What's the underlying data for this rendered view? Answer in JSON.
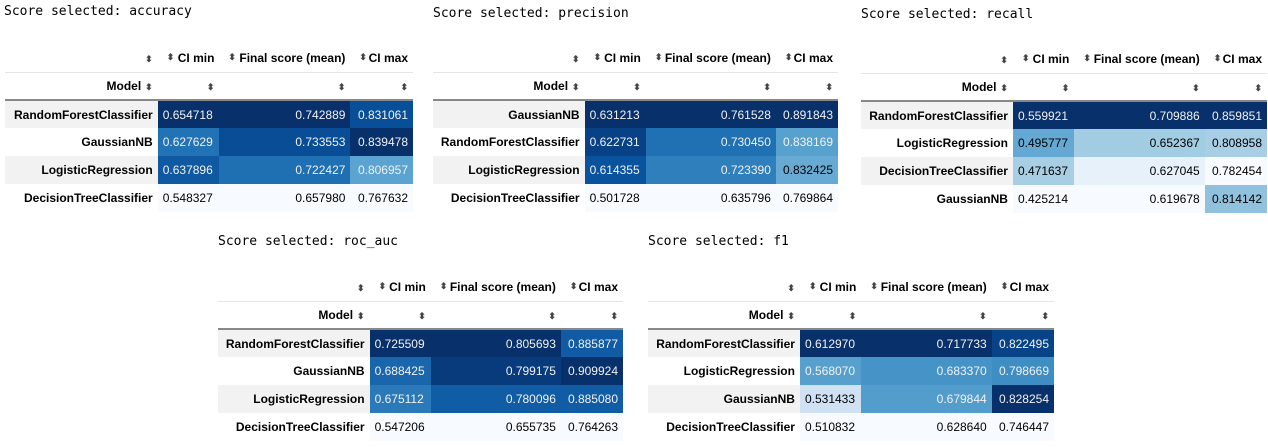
{
  "column_headers": {
    "ci_min": "CI min",
    "final": "Final score (mean)",
    "ci_max": "CI max",
    "model": "Model"
  },
  "sort_glyph": "⬍",
  "tables": [
    {
      "caption": "Score selected: accuracy",
      "rows": [
        {
          "model": "RandomForestClassifier",
          "ci_min": "0.654718",
          "final": "0.742889",
          "ci_max": "0.831061"
        },
        {
          "model": "GaussianNB",
          "ci_min": "0.627629",
          "final": "0.733553",
          "ci_max": "0.839478"
        },
        {
          "model": "LogisticRegression",
          "ci_min": "0.637896",
          "final": "0.722427",
          "ci_max": "0.806957"
        },
        {
          "model": "DecisionTreeClassifier",
          "ci_min": "0.548327",
          "final": "0.657980",
          "ci_max": "0.767632"
        }
      ]
    },
    {
      "caption": "Score selected: precision",
      "rows": [
        {
          "model": "GaussianNB",
          "ci_min": "0.631213",
          "final": "0.761528",
          "ci_max": "0.891843"
        },
        {
          "model": "RandomForestClassifier",
          "ci_min": "0.622731",
          "final": "0.730450",
          "ci_max": "0.838169"
        },
        {
          "model": "LogisticRegression",
          "ci_min": "0.614355",
          "final": "0.723390",
          "ci_max": "0.832425"
        },
        {
          "model": "DecisionTreeClassifier",
          "ci_min": "0.501728",
          "final": "0.635796",
          "ci_max": "0.769864"
        }
      ]
    },
    {
      "caption": "Score selected: recall",
      "rows": [
        {
          "model": "RandomForestClassifier",
          "ci_min": "0.559921",
          "final": "0.709886",
          "ci_max": "0.859851"
        },
        {
          "model": "LogisticRegression",
          "ci_min": "0.495777",
          "final": "0.652367",
          "ci_max": "0.808958"
        },
        {
          "model": "DecisionTreeClassifier",
          "ci_min": "0.471637",
          "final": "0.627045",
          "ci_max": "0.782454"
        },
        {
          "model": "GaussianNB",
          "ci_min": "0.425214",
          "final": "0.619678",
          "ci_max": "0.814142"
        }
      ]
    },
    {
      "caption": "Score selected: roc_auc",
      "rows": [
        {
          "model": "RandomForestClassifier",
          "ci_min": "0.725509",
          "final": "0.805693",
          "ci_max": "0.885877"
        },
        {
          "model": "GaussianNB",
          "ci_min": "0.688425",
          "final": "0.799175",
          "ci_max": "0.909924"
        },
        {
          "model": "LogisticRegression",
          "ci_min": "0.675112",
          "final": "0.780096",
          "ci_max": "0.885080"
        },
        {
          "model": "DecisionTreeClassifier",
          "ci_min": "0.547206",
          "final": "0.655735",
          "ci_max": "0.764263"
        }
      ]
    },
    {
      "caption": "Score selected: f1",
      "rows": [
        {
          "model": "RandomForestClassifier",
          "ci_min": "0.612970",
          "final": "0.717733",
          "ci_max": "0.822495"
        },
        {
          "model": "LogisticRegression",
          "ci_min": "0.568070",
          "final": "0.683370",
          "ci_max": "0.798669"
        },
        {
          "model": "GaussianNB",
          "ci_min": "0.531433",
          "final": "0.679844",
          "ci_max": "0.828254"
        },
        {
          "model": "DecisionTreeClassifier",
          "ci_min": "0.510832",
          "final": "0.628640",
          "ci_max": "0.746447"
        }
      ]
    }
  ],
  "colors": {
    "scale": [
      "#f7fbff",
      "#deebf7",
      "#c6dbef",
      "#9ecae1",
      "#6baed6",
      "#4292c6",
      "#2171b5",
      "#08519c",
      "#08306b"
    ]
  }
}
